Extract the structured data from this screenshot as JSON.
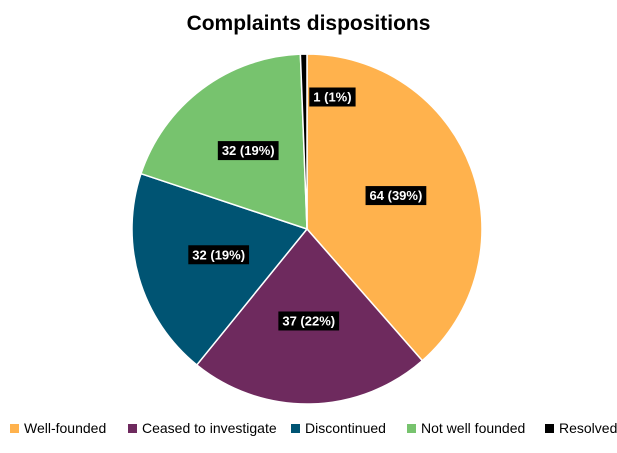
{
  "chart_data": {
    "type": "pie",
    "title": "Complaints dispositions",
    "slices": [
      {
        "name": "Well-founded",
        "value": 64,
        "percent": 39,
        "label": "64 (39%)",
        "color": "#FFB24D"
      },
      {
        "name": "Ceased to investigate",
        "value": 37,
        "percent": 22,
        "label": "37 (22%)",
        "color": "#6E2A5E"
      },
      {
        "name": "Discontinued",
        "value": 32,
        "percent": 19,
        "label": "32 (19%)",
        "color": "#005473"
      },
      {
        "name": "Not well founded",
        "value": 32,
        "percent": 19,
        "label": "32 (19%)",
        "color": "#77C36E"
      },
      {
        "name": "Resolved",
        "value": 1,
        "percent": 1,
        "label": "1 (1%)",
        "color": "#000000"
      }
    ],
    "legend_position": "bottom"
  }
}
